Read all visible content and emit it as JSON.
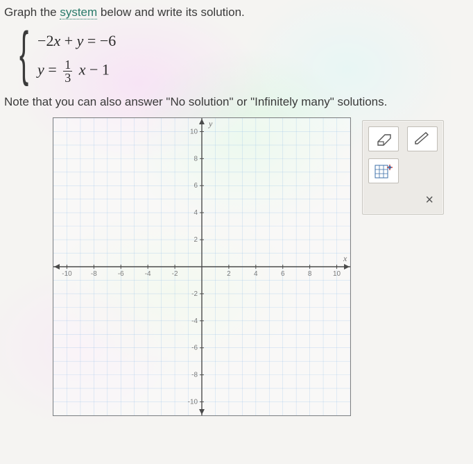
{
  "prompt": {
    "prefix": "Graph the ",
    "link_word": "system",
    "suffix": " below and write its solution."
  },
  "equations": {
    "eq1": {
      "lhs": "−2x + y",
      "sep": "=",
      "rhs": "−6"
    },
    "eq2": {
      "lhs_var": "y",
      "sep": "=",
      "frac_num": "1",
      "frac_den": "3",
      "tail_var": "x",
      "tail_minus": " − ",
      "tail_const": "1"
    }
  },
  "note": "Note that you can also answer \"No solution\" or \"Infinitely many\" solutions.",
  "graph": {
    "xlim": [
      -11,
      11
    ],
    "ylim": [
      -11,
      11
    ],
    "grid_step": 1,
    "label_step": 2,
    "grid_color": "#7fb3e6",
    "grid_opacity": 0.35,
    "axis_color": "#4a4a4a",
    "label_color": "#7a7a7a",
    "label_fontsize": 10,
    "y_title": "y",
    "x_title": "x",
    "background": "rgba(255,255,255,0.0)"
  },
  "toolbar": {
    "eraser_label": "eraser",
    "pencil_label": "pencil",
    "grid_point_label": "grid-point-tool",
    "close_label": "×"
  },
  "colors": {
    "toolbar_bg": "#eceae6",
    "toolbar_border": "#c8c6c0",
    "btn_bg": "#ffffff",
    "btn_border": "#c0bdb6"
  }
}
